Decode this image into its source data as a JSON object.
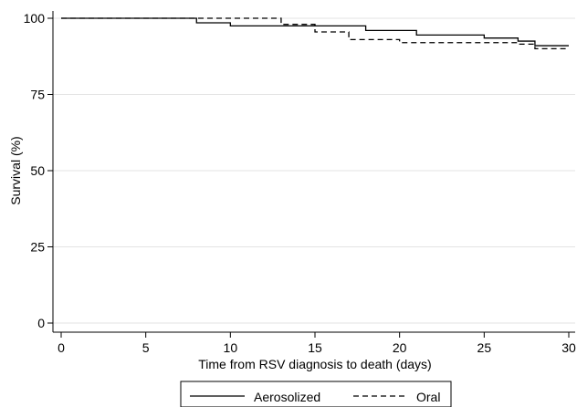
{
  "chart_data": {
    "type": "line",
    "chart_subtype": "kaplan-meier step",
    "title": "",
    "xlabel": "Time from RSV diagnosis to death (days)",
    "ylabel": "Survival (%)",
    "xlim": [
      0,
      30
    ],
    "ylim": [
      0,
      100
    ],
    "xticks": [
      0,
      5,
      10,
      15,
      20,
      25,
      30
    ],
    "yticks": [
      0,
      25,
      50,
      75,
      100
    ],
    "grid": true,
    "legend_position": "bottom",
    "series": [
      {
        "name": "Aerosolized",
        "style": "solid",
        "color": "#000000",
        "steps": [
          [
            0,
            100
          ],
          [
            8,
            98.5
          ],
          [
            10,
            97.5
          ],
          [
            15,
            97.5
          ],
          [
            18,
            96
          ],
          [
            21,
            94.5
          ],
          [
            25,
            93.5
          ],
          [
            27,
            92.5
          ],
          [
            28,
            91
          ]
        ],
        "end_x": 30
      },
      {
        "name": "Oral",
        "style": "dashed",
        "color": "#000000",
        "steps": [
          [
            0,
            100
          ],
          [
            13,
            98
          ],
          [
            15,
            95.5
          ],
          [
            17,
            93
          ],
          [
            20,
            92
          ],
          [
            27,
            91.5
          ],
          [
            28,
            90
          ]
        ],
        "end_x": 30
      }
    ]
  }
}
